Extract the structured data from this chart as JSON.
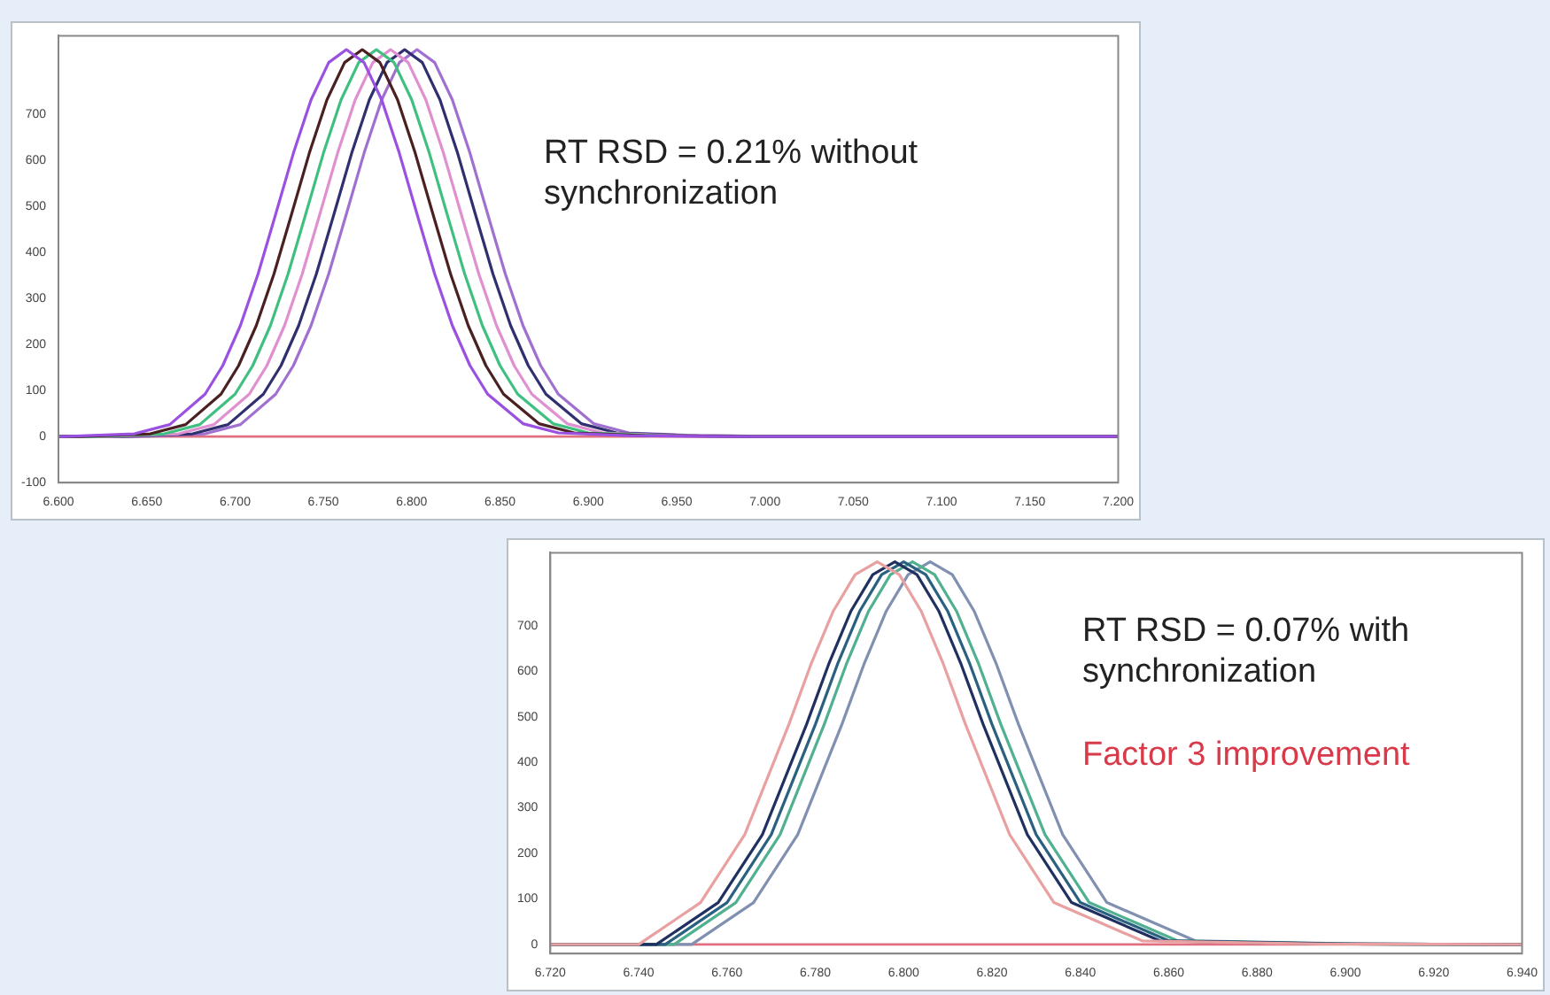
{
  "chart_data": [
    {
      "type": "line",
      "marker": "none",
      "legend": false,
      "grid": false,
      "xlim": [
        6.6,
        7.2
      ],
      "xticks": [
        {
          "value": 6.6,
          "label": "6.600"
        },
        {
          "value": 6.65,
          "label": "6.650"
        },
        {
          "value": 6.7,
          "label": "6.700"
        },
        {
          "value": 6.75,
          "label": "6.750"
        },
        {
          "value": 6.8,
          "label": "6.800"
        },
        {
          "value": 6.85,
          "label": "6.850"
        },
        {
          "value": 6.9,
          "label": "6.900"
        },
        {
          "value": 6.95,
          "label": "6.950"
        },
        {
          "value": 7.0,
          "label": "7.000"
        },
        {
          "value": 7.05,
          "label": "7.050"
        },
        {
          "value": 7.1,
          "label": "7.100"
        },
        {
          "value": 7.15,
          "label": "7.150"
        },
        {
          "value": 7.2,
          "label": "7.200"
        }
      ],
      "ylim": [
        -100,
        870
      ],
      "yticks": [
        -100,
        0,
        100,
        200,
        300,
        400,
        500,
        600,
        700
      ],
      "ref_lines": [
        {
          "axis": "y",
          "value": 0,
          "color": "#e07080"
        }
      ],
      "annotations": [
        "RT RSD = 0.21% without synchronization"
      ],
      "series": [
        {
          "color": "#9a50e0",
          "x": [
            6.6,
            6.603,
            6.643,
            6.663,
            6.683,
            6.693,
            6.703,
            6.713,
            6.723,
            6.733,
            6.743,
            6.753,
            6.763,
            6.773,
            6.783,
            6.793,
            6.803,
            6.813,
            6.823,
            6.833,
            6.843,
            6.863,
            6.883,
            6.923,
            6.983,
            7.2
          ],
          "values": [
            0,
            0,
            6,
            26,
            92,
            154,
            241,
            353,
            483,
            615,
            731,
            812,
            840,
            812,
            731,
            615,
            483,
            353,
            241,
            154,
            92,
            28,
            8,
            2,
            0,
            0
          ]
        },
        {
          "color": "#4a2020",
          "x": [
            6.6,
            6.612,
            6.652,
            6.672,
            6.692,
            6.702,
            6.712,
            6.722,
            6.732,
            6.742,
            6.752,
            6.762,
            6.772,
            6.782,
            6.792,
            6.802,
            6.812,
            6.822,
            6.832,
            6.842,
            6.852,
            6.872,
            6.892,
            6.932,
            6.992,
            7.2
          ],
          "values": [
            0,
            0,
            6,
            26,
            92,
            154,
            241,
            353,
            483,
            615,
            731,
            812,
            840,
            812,
            731,
            615,
            483,
            353,
            241,
            154,
            92,
            28,
            8,
            2,
            0,
            0
          ]
        },
        {
          "color": "#40c080",
          "x": [
            6.6,
            6.62,
            6.66,
            6.68,
            6.7,
            6.71,
            6.72,
            6.73,
            6.74,
            6.75,
            6.76,
            6.77,
            6.78,
            6.79,
            6.8,
            6.81,
            6.82,
            6.83,
            6.84,
            6.85,
            6.86,
            6.88,
            6.9,
            6.94,
            7.0,
            7.2
          ],
          "values": [
            0,
            0,
            6,
            26,
            92,
            154,
            241,
            353,
            483,
            615,
            731,
            812,
            840,
            812,
            731,
            615,
            483,
            353,
            241,
            154,
            92,
            28,
            8,
            2,
            0,
            0
          ]
        },
        {
          "color": "#e090d0",
          "x": [
            6.6,
            6.628,
            6.668,
            6.688,
            6.708,
            6.718,
            6.728,
            6.738,
            6.748,
            6.758,
            6.768,
            6.778,
            6.788,
            6.798,
            6.808,
            6.818,
            6.828,
            6.838,
            6.848,
            6.858,
            6.868,
            6.888,
            6.908,
            6.948,
            7.008,
            7.2
          ],
          "values": [
            0,
            0,
            6,
            26,
            92,
            154,
            241,
            353,
            483,
            615,
            731,
            812,
            840,
            812,
            731,
            615,
            483,
            353,
            241,
            154,
            92,
            28,
            8,
            2,
            0,
            0
          ]
        },
        {
          "color": "#303070",
          "x": [
            6.6,
            6.636,
            6.676,
            6.696,
            6.716,
            6.726,
            6.736,
            6.746,
            6.756,
            6.766,
            6.776,
            6.786,
            6.796,
            6.806,
            6.816,
            6.826,
            6.836,
            6.846,
            6.856,
            6.866,
            6.876,
            6.896,
            6.916,
            6.956,
            7.016,
            7.2
          ],
          "values": [
            0,
            0,
            6,
            26,
            92,
            154,
            241,
            353,
            483,
            615,
            731,
            812,
            840,
            812,
            731,
            615,
            483,
            353,
            241,
            154,
            92,
            28,
            8,
            2,
            0,
            0
          ]
        },
        {
          "color": "#a070d0",
          "x": [
            6.6,
            6.643,
            6.683,
            6.703,
            6.723,
            6.733,
            6.743,
            6.753,
            6.763,
            6.773,
            6.783,
            6.793,
            6.803,
            6.813,
            6.823,
            6.833,
            6.843,
            6.853,
            6.863,
            6.873,
            6.883,
            6.903,
            6.923,
            6.963,
            7.023,
            7.2
          ],
          "values": [
            0,
            0,
            6,
            26,
            92,
            154,
            241,
            353,
            483,
            615,
            731,
            812,
            840,
            812,
            731,
            615,
            483,
            353,
            241,
            154,
            92,
            28,
            8,
            2,
            0,
            0
          ]
        }
      ]
    },
    {
      "type": "line",
      "marker": "none",
      "legend": false,
      "grid": false,
      "xlim": [
        6.72,
        6.94
      ],
      "xticks": [
        {
          "value": 6.72,
          "label": "6.720"
        },
        {
          "value": 6.74,
          "label": "6.740"
        },
        {
          "value": 6.76,
          "label": "6.760"
        },
        {
          "value": 6.78,
          "label": "6.780"
        },
        {
          "value": 6.8,
          "label": "6.800"
        },
        {
          "value": 6.82,
          "label": "6.820"
        },
        {
          "value": 6.84,
          "label": "6.840"
        },
        {
          "value": 6.86,
          "label": "6.860"
        },
        {
          "value": 6.88,
          "label": "6.880"
        },
        {
          "value": 6.9,
          "label": "6.900"
        },
        {
          "value": 6.92,
          "label": "6.920"
        },
        {
          "value": 6.94,
          "label": "6.940"
        }
      ],
      "ylim": [
        -20,
        860
      ],
      "yticks": [
        0,
        100,
        200,
        300,
        400,
        500,
        600,
        700
      ],
      "ref_lines": [
        {
          "axis": "y",
          "value": 0,
          "color": "#e07080"
        }
      ],
      "annotations": [
        "RT RSD = 0.07% with synchronization",
        "Factor 3 improvement"
      ],
      "series": [
        {
          "color": "#e8a0a0",
          "x": [
            6.72,
            6.74,
            6.754,
            6.764,
            6.774,
            6.779,
            6.784,
            6.789,
            6.794,
            6.799,
            6.804,
            6.809,
            6.814,
            6.824,
            6.834,
            6.854,
            6.894,
            6.94
          ],
          "values": [
            0,
            0,
            92,
            241,
            483,
            615,
            731,
            812,
            840,
            812,
            731,
            615,
            483,
            241,
            92,
            8,
            1,
            0
          ]
        },
        {
          "color": "#203060",
          "x": [
            6.72,
            6.744,
            6.758,
            6.768,
            6.778,
            6.783,
            6.788,
            6.793,
            6.798,
            6.803,
            6.808,
            6.813,
            6.818,
            6.828,
            6.838,
            6.858,
            6.898,
            6.94
          ],
          "values": [
            0,
            0,
            92,
            241,
            483,
            615,
            731,
            812,
            840,
            812,
            731,
            615,
            483,
            241,
            92,
            8,
            1,
            0
          ]
        },
        {
          "color": "#2a6080",
          "x": [
            6.72,
            6.746,
            6.76,
            6.77,
            6.78,
            6.785,
            6.79,
            6.795,
            6.8,
            6.805,
            6.81,
            6.815,
            6.82,
            6.83,
            6.84,
            6.86,
            6.9,
            6.94
          ],
          "values": [
            0,
            0,
            92,
            241,
            483,
            615,
            731,
            812,
            840,
            812,
            731,
            615,
            483,
            241,
            92,
            8,
            1,
            0
          ]
        },
        {
          "color": "#50b090",
          "x": [
            6.72,
            6.748,
            6.762,
            6.772,
            6.782,
            6.787,
            6.792,
            6.797,
            6.802,
            6.807,
            6.812,
            6.817,
            6.822,
            6.832,
            6.842,
            6.862,
            6.902,
            6.94
          ],
          "values": [
            0,
            0,
            92,
            241,
            483,
            615,
            731,
            812,
            840,
            812,
            731,
            615,
            483,
            241,
            92,
            8,
            1,
            0
          ]
        },
        {
          "color": "#8090b0",
          "x": [
            6.72,
            6.752,
            6.766,
            6.776,
            6.786,
            6.791,
            6.796,
            6.801,
            6.806,
            6.811,
            6.816,
            6.821,
            6.826,
            6.836,
            6.846,
            6.866,
            6.906,
            6.94
          ],
          "values": [
            0,
            0,
            92,
            241,
            483,
            615,
            731,
            812,
            840,
            812,
            731,
            615,
            483,
            241,
            92,
            8,
            1,
            0
          ]
        }
      ]
    }
  ]
}
